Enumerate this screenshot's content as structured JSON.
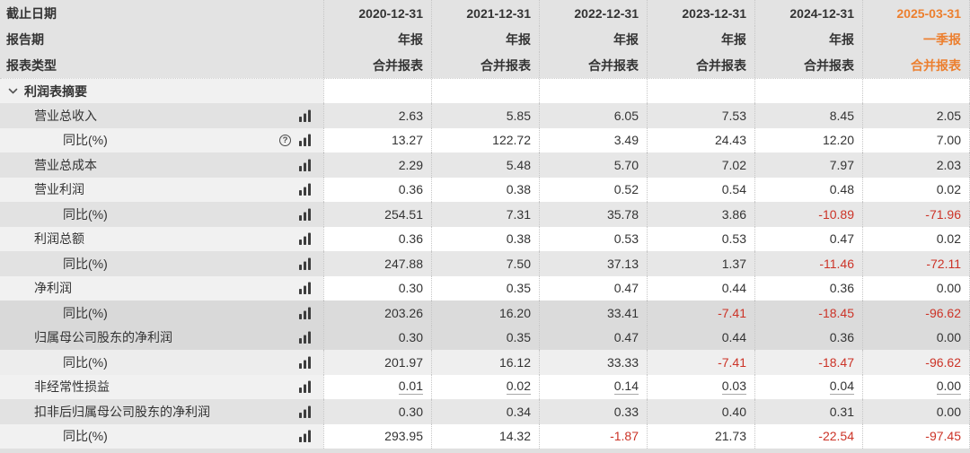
{
  "colors": {
    "orange": "#ec7f2e",
    "red": "#cc3327",
    "text": "#333333",
    "header_bg": "#e3e3e3"
  },
  "icons": {
    "help_glyph": "?"
  },
  "header_rows": [
    {
      "label": "截止日期",
      "values": [
        "2020-12-31",
        "2021-12-31",
        "2022-12-31",
        "2023-12-31",
        "2024-12-31",
        "2025-03-31"
      ]
    },
    {
      "label": "报告期",
      "values": [
        "年报",
        "年报",
        "年报",
        "年报",
        "年报",
        "一季报"
      ]
    },
    {
      "label": "报表类型",
      "values": [
        "合并报表",
        "合并报表",
        "合并报表",
        "合并报表",
        "合并报表",
        "合并报表"
      ]
    }
  ],
  "highlight_column_index": 5,
  "section": {
    "title": "利润表摘要"
  },
  "table": {
    "rows": [
      {
        "label": "营业总收入",
        "sub": false,
        "help": false,
        "underline": false,
        "shade": "gray",
        "values": [
          "2.63",
          "5.85",
          "6.05",
          "7.53",
          "8.45",
          "2.05"
        ]
      },
      {
        "label": "同比(%)",
        "sub": true,
        "help": true,
        "underline": false,
        "shade": "white",
        "values": [
          "13.27",
          "122.72",
          "3.49",
          "24.43",
          "12.20",
          "7.00"
        ]
      },
      {
        "label": "营业总成本",
        "sub": false,
        "help": false,
        "underline": false,
        "shade": "gray",
        "values": [
          "2.29",
          "5.48",
          "5.70",
          "7.02",
          "7.97",
          "2.03"
        ]
      },
      {
        "label": "营业利润",
        "sub": false,
        "help": false,
        "underline": false,
        "shade": "white",
        "values": [
          "0.36",
          "0.38",
          "0.52",
          "0.54",
          "0.48",
          "0.02"
        ]
      },
      {
        "label": "同比(%)",
        "sub": true,
        "help": false,
        "underline": false,
        "shade": "gray",
        "values": [
          "254.51",
          "7.31",
          "35.78",
          "3.86",
          "-10.89",
          "-71.96"
        ]
      },
      {
        "label": "利润总额",
        "sub": false,
        "help": false,
        "underline": false,
        "shade": "white",
        "values": [
          "0.36",
          "0.38",
          "0.53",
          "0.53",
          "0.47",
          "0.02"
        ]
      },
      {
        "label": "同比(%)",
        "sub": true,
        "help": false,
        "underline": false,
        "shade": "gray",
        "values": [
          "247.88",
          "7.50",
          "37.13",
          "1.37",
          "-11.46",
          "-72.11"
        ]
      },
      {
        "label": "净利润",
        "sub": false,
        "help": false,
        "underline": false,
        "shade": "white",
        "values": [
          "0.30",
          "0.35",
          "0.47",
          "0.44",
          "0.36",
          "0.00"
        ]
      },
      {
        "label": "同比(%)",
        "sub": true,
        "help": false,
        "underline": false,
        "shade": "dark",
        "values": [
          "203.26",
          "16.20",
          "33.41",
          "-7.41",
          "-18.45",
          "-96.62"
        ]
      },
      {
        "label": "归属母公司股东的净利润",
        "sub": false,
        "help": false,
        "underline": false,
        "shade": "dark",
        "values": [
          "0.30",
          "0.35",
          "0.47",
          "0.44",
          "0.36",
          "0.00"
        ]
      },
      {
        "label": "同比(%)",
        "sub": true,
        "help": false,
        "underline": false,
        "shade": "light",
        "values": [
          "201.97",
          "16.12",
          "33.33",
          "-7.41",
          "-18.47",
          "-96.62"
        ]
      },
      {
        "label": "非经常性损益",
        "sub": false,
        "help": false,
        "underline": true,
        "shade": "white",
        "values": [
          "0.01",
          "0.02",
          "0.14",
          "0.03",
          "0.04",
          "0.00"
        ]
      },
      {
        "label": "扣非后归属母公司股东的净利润",
        "sub": false,
        "help": false,
        "underline": false,
        "shade": "gray",
        "values": [
          "0.30",
          "0.34",
          "0.33",
          "0.40",
          "0.31",
          "0.00"
        ]
      },
      {
        "label": "同比(%)",
        "sub": true,
        "help": false,
        "underline": false,
        "shade": "white",
        "values": [
          "293.95",
          "14.32",
          "-1.87",
          "21.73",
          "-22.54",
          "-97.45"
        ]
      }
    ]
  }
}
